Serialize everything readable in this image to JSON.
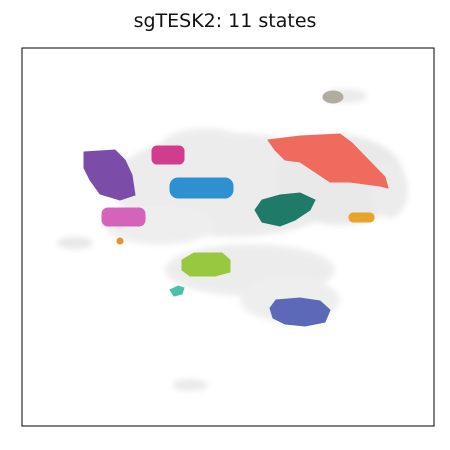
{
  "chart_data": {
    "type": "scatter",
    "title": "sgTESK2: 11 states",
    "xlabel": "",
    "ylabel": "",
    "axis_ticks": false,
    "grid": false,
    "legend": "none",
    "background_color": "#e6e6e6",
    "states": [
      {
        "color": "#b0ada0"
      },
      {
        "color": "#ef6b5e"
      },
      {
        "color": "#7b4da8"
      },
      {
        "color": "#d03c8e"
      },
      {
        "color": "#2f8fd0"
      },
      {
        "color": "#1f7a68"
      },
      {
        "color": "#e8a42a"
      },
      {
        "color": "#d464b9"
      },
      {
        "color": "#e8902a"
      },
      {
        "color": "#98c83f"
      },
      {
        "color": "#4fbfaa"
      },
      {
        "color": "#5c69b8"
      }
    ]
  }
}
